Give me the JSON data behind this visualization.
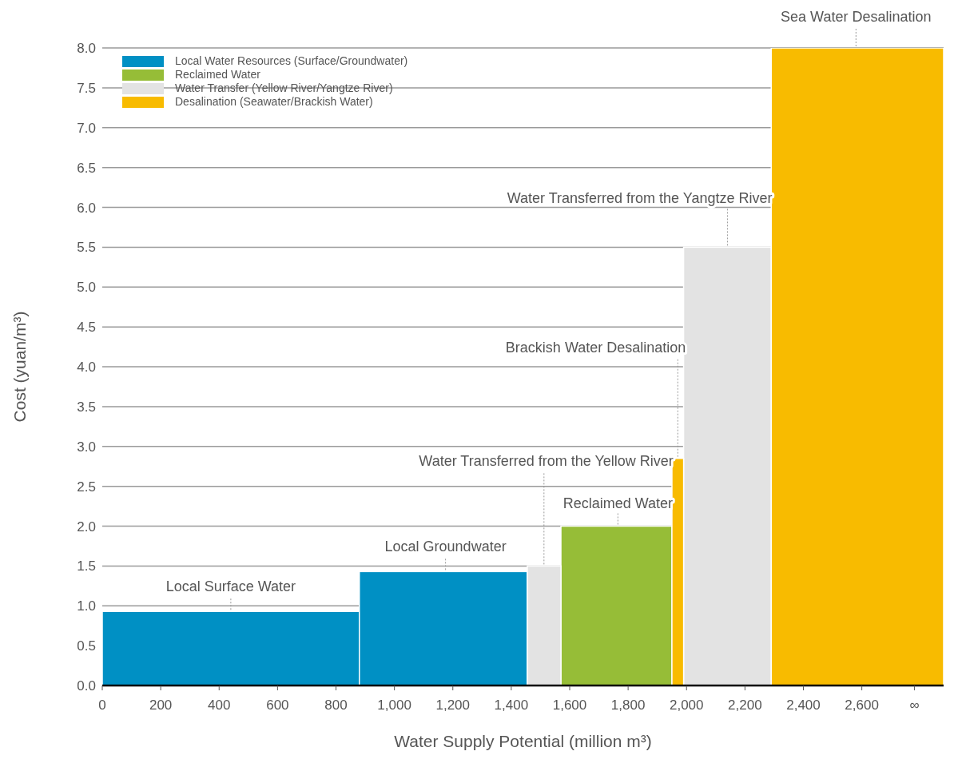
{
  "chart_data": {
    "type": "histogram",
    "xlabel": "Water Supply Potential (million m³)",
    "ylabel": "Cost (yuan/m³)",
    "bins": [
      0,
      880,
      1455,
      1570,
      1950,
      1990,
      2290,
      2880
    ],
    "series": [
      {
        "name": "Local Water Resources (Surface/Groundwater)",
        "color": "#0090c4",
        "values": [
          0.93,
          1.43,
          null,
          null,
          null,
          null,
          null
        ]
      },
      {
        "name": "Reclaimed Water",
        "color": "#96bd37",
        "values": [
          null,
          null,
          null,
          2.0,
          null,
          null,
          null
        ]
      },
      {
        "name": "Water Transfer (Yellow River/Yangtze River)",
        "color": "#e3e3e3",
        "values": [
          null,
          null,
          1.5,
          null,
          null,
          5.5,
          null
        ]
      },
      {
        "name": "Desalination (Seawater/Brackish Water)",
        "color": "#f8bb00",
        "values": [
          null,
          null,
          null,
          null,
          2.85,
          null,
          8.0
        ]
      }
    ],
    "xlim": [
      0,
      2880
    ],
    "xticks": [
      0,
      200,
      400,
      600,
      800,
      {
        "value": 1000,
        "label": "1,000"
      },
      {
        "value": 1200,
        "label": "1,200"
      },
      {
        "value": 1400,
        "label": "1,400"
      },
      {
        "value": 1600,
        "label": "1,600"
      },
      {
        "value": 1800,
        "label": "1,800"
      },
      {
        "value": 2000,
        "label": "2,000"
      },
      {
        "value": 2200,
        "label": "2,200"
      },
      {
        "value": 2400,
        "label": "2,400"
      },
      {
        "value": 2600,
        "label": "2,600"
      },
      {
        "value": 2780,
        "label": "∞"
      }
    ],
    "ylim": [
      0,
      8
    ],
    "yticks": [
      {
        "value": 0,
        "label": "0.0"
      },
      0.5,
      {
        "value": 1,
        "label": "1.0"
      },
      1.5,
      {
        "value": 2,
        "label": "2.0"
      },
      2.5,
      {
        "value": 3,
        "label": "3.0"
      },
      3.5,
      {
        "value": 4,
        "label": "4.0"
      },
      4.5,
      {
        "value": 5,
        "label": "5.0"
      },
      5.5,
      {
        "value": 6,
        "label": "6.0"
      },
      6.5,
      {
        "value": 7,
        "label": "7.0"
      },
      7.5,
      {
        "value": 8,
        "label": "8.0"
      }
    ],
    "grid": "y",
    "legend": "top left",
    "annotations": [
      {
        "text": "Local Surface Water",
        "x": 440,
        "y": 0.93
      },
      {
        "text": "Local Groundwater",
        "x": 1175,
        "y": 1.43
      },
      {
        "text": "Water Transferred from the Yellow River",
        "x": 1512,
        "y": 1.5
      },
      {
        "text": "Reclaimed Water",
        "x": 1765,
        "y": 2.0
      },
      {
        "text": "Brackish Water Desalination",
        "x": 1970,
        "y": 2.85
      },
      {
        "text": "Water Transferred from the Yangtze River",
        "x": 2140,
        "y": 5.5
      },
      {
        "text": "Sea Water Desalination",
        "x": 2580,
        "y": 8.0
      }
    ]
  }
}
